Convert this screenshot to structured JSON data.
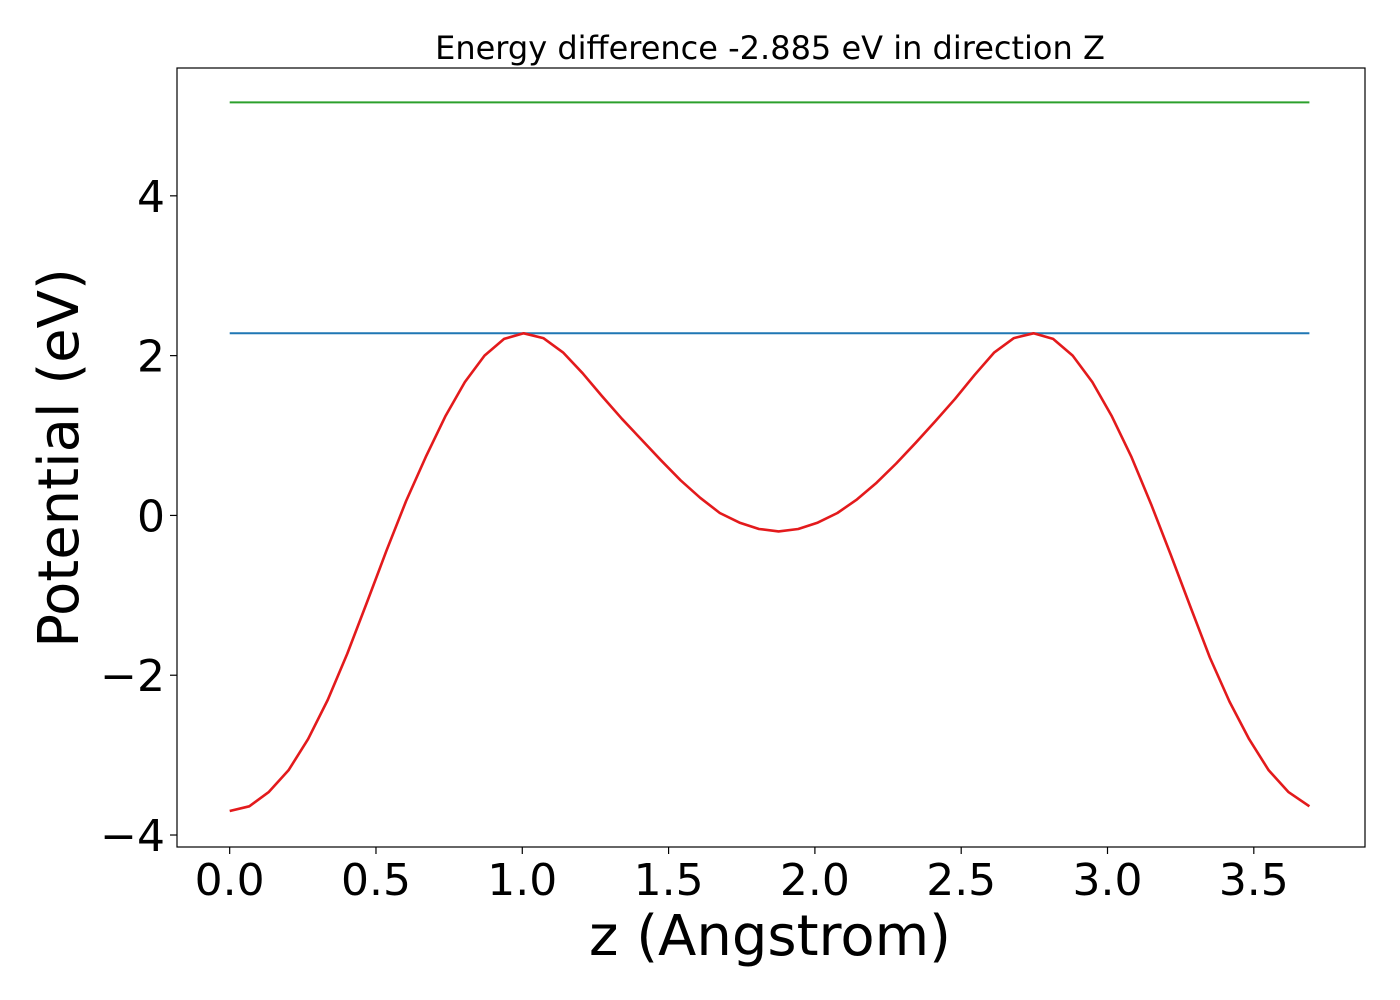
{
  "chart_data": {
    "type": "line",
    "title": "Energy difference -2.885 eV in direction Z",
    "xlabel": "z (Angstrom)",
    "ylabel": "Potential (eV)",
    "xlim": [
      -0.18,
      3.88
    ],
    "ylim": [
      -4.15,
      5.6
    ],
    "xticks": [
      0.0,
      0.5,
      1.0,
      1.5,
      2.0,
      2.5,
      3.0,
      3.5
    ],
    "xtick_labels": [
      "0.0",
      "0.5",
      "1.0",
      "1.5",
      "2.0",
      "2.5",
      "3.0",
      "3.5"
    ],
    "yticks": [
      -4,
      -2,
      0,
      2,
      4
    ],
    "ytick_labels": [
      "−4",
      "−2",
      "0",
      "2",
      "4"
    ],
    "grid": false,
    "series": [
      {
        "color": "#2ca02c",
        "x": [
          0.0,
          3.69
        ],
        "y": [
          5.17,
          5.17
        ]
      },
      {
        "color": "#1f77b4",
        "x": [
          0.0,
          3.69
        ],
        "y": [
          2.28,
          2.28
        ]
      },
      {
        "color": "#e31a1c",
        "x": [
          0.0,
          0.067,
          0.134,
          0.201,
          0.268,
          0.335,
          0.402,
          0.469,
          0.536,
          0.603,
          0.67,
          0.737,
          0.804,
          0.871,
          0.938,
          1.005,
          1.072,
          1.139,
          1.206,
          1.273,
          1.34,
          1.407,
          1.474,
          1.541,
          1.608,
          1.675,
          1.742,
          1.809,
          1.876,
          1.943,
          2.01,
          2.077,
          2.144,
          2.211,
          2.278,
          2.345,
          2.412,
          2.479,
          2.546,
          2.613,
          2.68,
          2.747,
          2.814,
          2.881,
          2.948,
          3.015,
          3.082,
          3.149,
          3.216,
          3.283,
          3.35,
          3.417,
          3.484,
          3.551,
          3.618,
          3.69
        ],
        "y": [
          -3.7,
          -3.64,
          -3.46,
          -3.19,
          -2.8,
          -2.31,
          -1.73,
          -1.09,
          -0.44,
          0.18,
          0.73,
          1.24,
          1.67,
          2.0,
          2.21,
          2.28,
          2.22,
          2.04,
          1.78,
          1.49,
          1.21,
          0.95,
          0.69,
          0.44,
          0.22,
          0.03,
          -0.09,
          -0.17,
          -0.2,
          -0.17,
          -0.09,
          0.03,
          0.2,
          0.41,
          0.65,
          0.91,
          1.18,
          1.46,
          1.76,
          2.04,
          2.22,
          2.28,
          2.21,
          2.0,
          1.67,
          1.24,
          0.73,
          0.14,
          -0.49,
          -1.14,
          -1.78,
          -2.33,
          -2.8,
          -3.19,
          -3.46,
          -3.64
        ]
      }
    ]
  }
}
